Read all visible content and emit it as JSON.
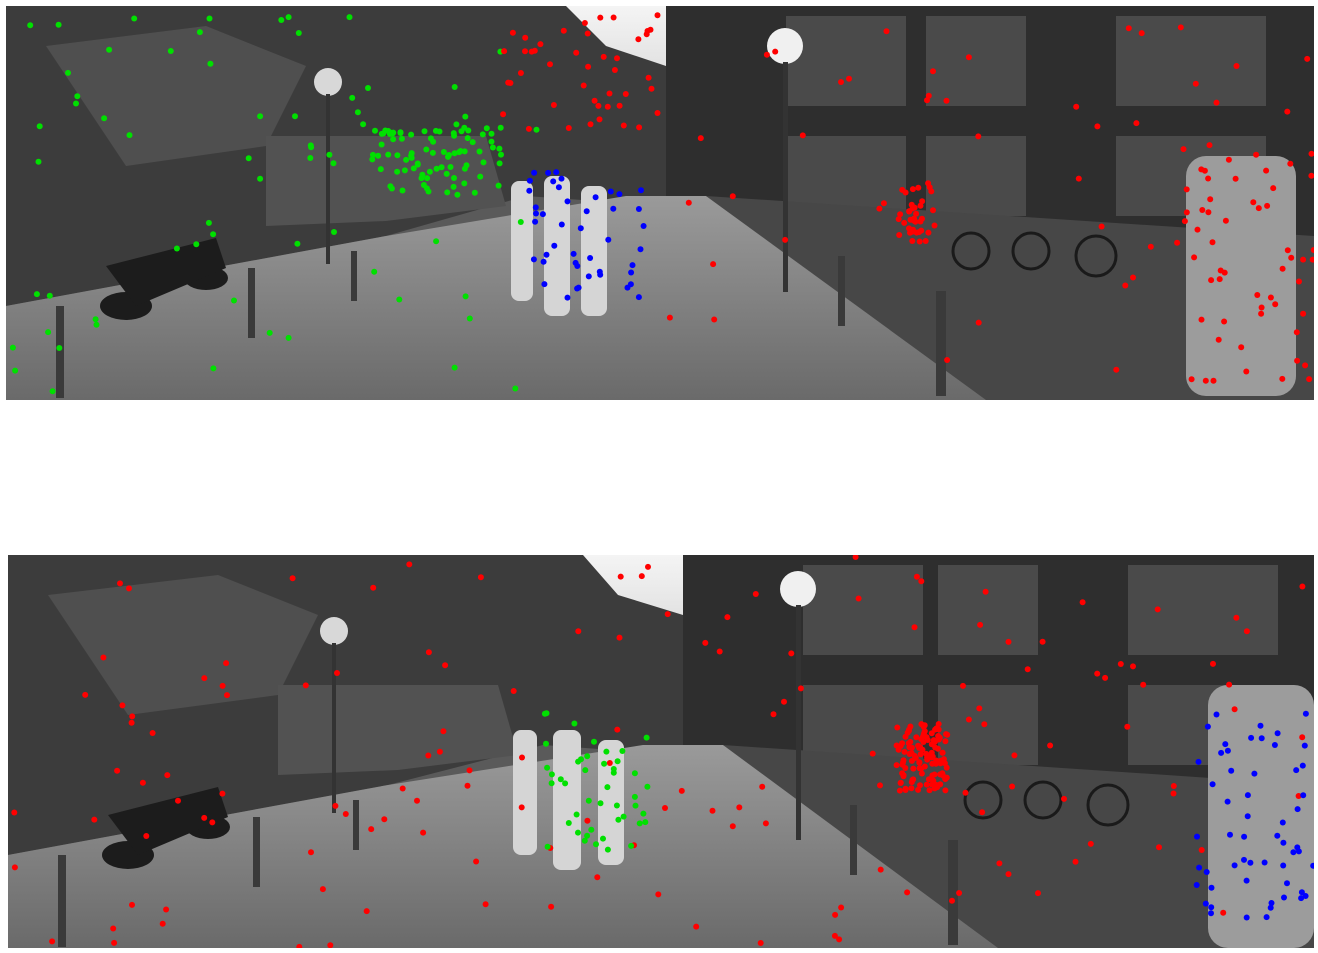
{
  "frames": [
    {
      "id": "top",
      "seed": 11,
      "groups": [
        {
          "color": "#00e000",
          "count": 150,
          "regions": [
            [
              0.0,
              0.02,
              0.42,
              0.98
            ],
            [
              0.28,
              0.3,
              0.38,
              0.48
            ]
          ]
        },
        {
          "color": "#0000ff",
          "count": 45,
          "regions": [
            [
              0.4,
              0.42,
              0.49,
              0.75
            ]
          ]
        },
        {
          "color": "#ff0000",
          "count": 180,
          "regions": [
            [
              0.38,
              0.02,
              0.5,
              0.32
            ],
            [
              0.5,
              0.05,
              1.0,
              0.98
            ],
            [
              0.68,
              0.43,
              0.71,
              0.6
            ],
            [
              0.9,
              0.35,
              1.0,
              0.96
            ]
          ]
        }
      ]
    },
    {
      "id": "bottom",
      "seed": 29,
      "groups": [
        {
          "color": "#ff0000",
          "count": 260,
          "regions": [
            [
              0.0,
              0.0,
              1.0,
              1.0
            ],
            [
              0.68,
              0.43,
              0.72,
              0.6
            ]
          ]
        },
        {
          "color": "#00e000",
          "count": 45,
          "regions": [
            [
              0.41,
              0.4,
              0.49,
              0.75
            ]
          ]
        },
        {
          "color": "#0000ff",
          "count": 55,
          "regions": [
            [
              0.91,
              0.35,
              1.0,
              0.95
            ]
          ]
        }
      ]
    }
  ]
}
